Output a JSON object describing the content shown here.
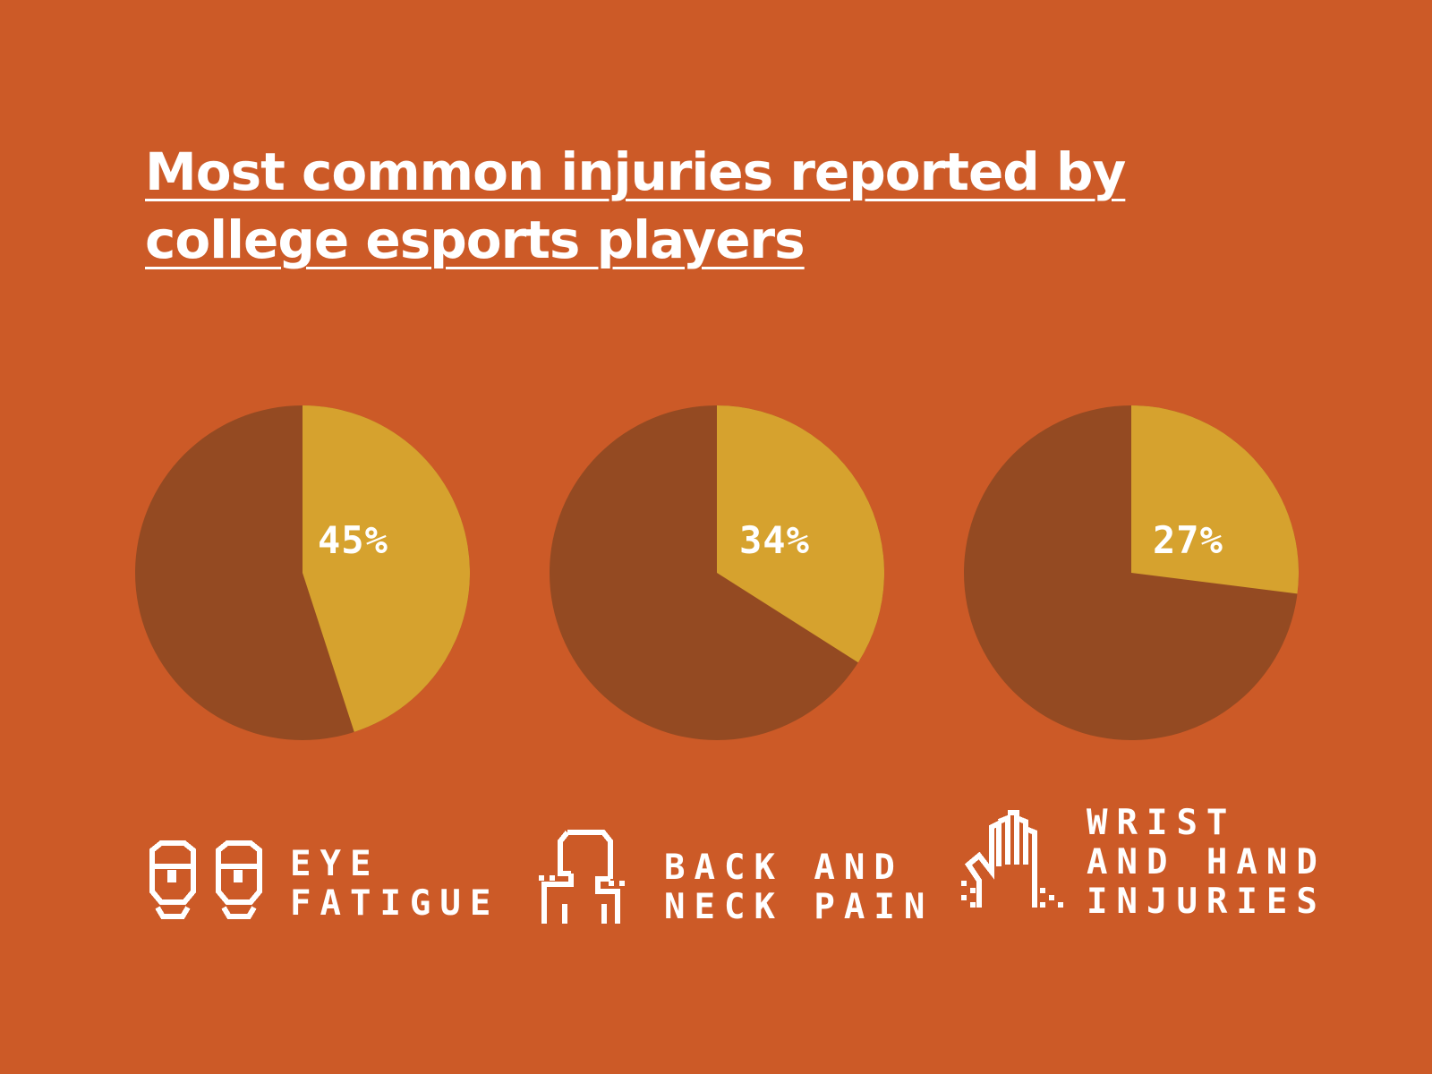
{
  "title_lines": [
    "Most common injuries reported by",
    "college esports players"
  ],
  "colors": {
    "background": "#cc5a27",
    "slice": "#d6a22e",
    "remainder": "#944a22",
    "text": "#ffffff"
  },
  "chart_data": [
    {
      "type": "pie",
      "value": 45,
      "label": "45%",
      "legend_lines": [
        "EYE",
        "FATIGUE"
      ],
      "icon": "eyes-icon"
    },
    {
      "type": "pie",
      "value": 34,
      "label": "34%",
      "legend_lines": [
        "BACK AND",
        "NECK PAIN"
      ],
      "icon": "person-back-icon"
    },
    {
      "type": "pie",
      "value": 27,
      "label": "27%",
      "legend_lines": [
        "WRIST",
        "AND HAND",
        "INJURIES"
      ],
      "icon": "hand-icon"
    }
  ]
}
